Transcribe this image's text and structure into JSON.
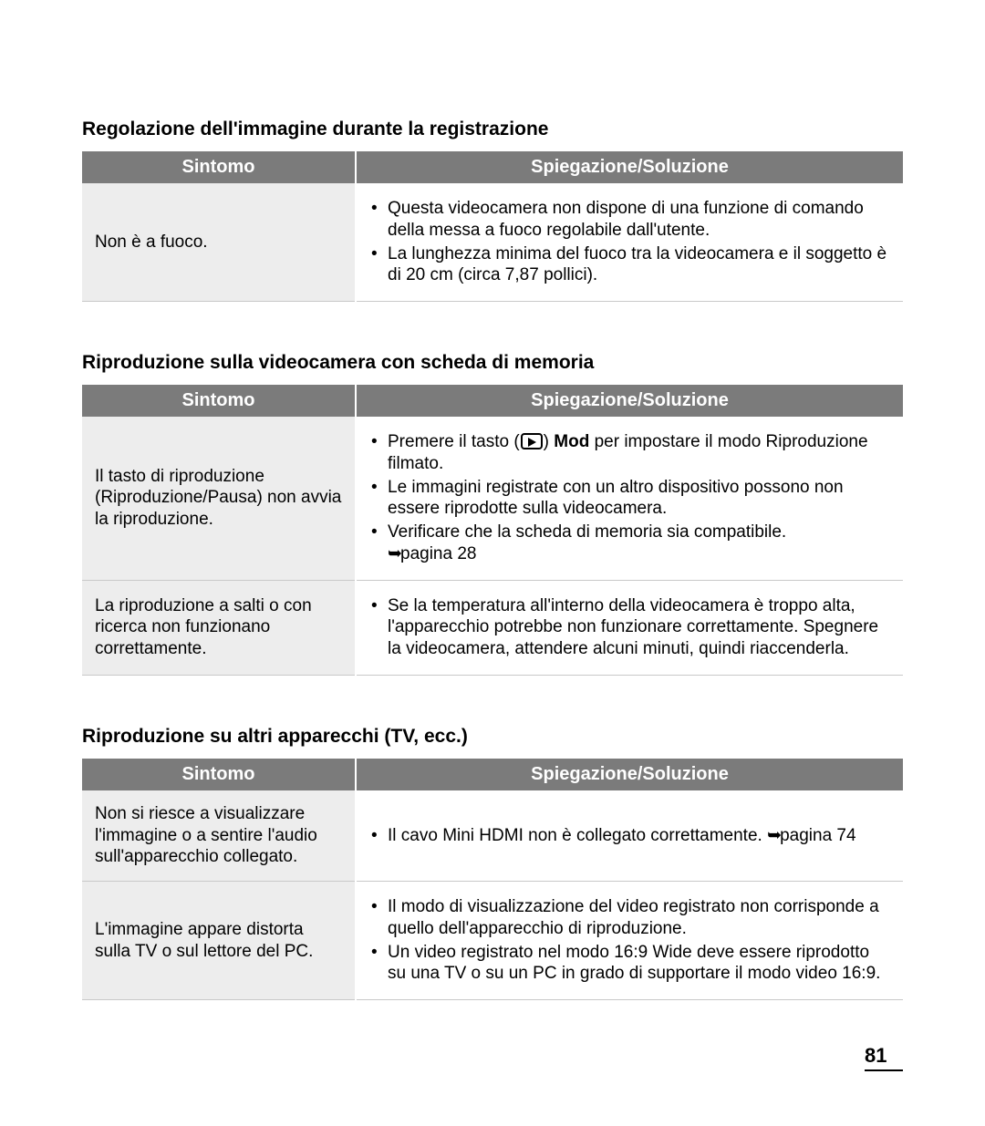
{
  "page_number": "81",
  "arrow_glyph": "➥",
  "headers": {
    "symptom": "Sintomo",
    "solution": "Spiegazione/Soluzione"
  },
  "sections": [
    {
      "title": "Regolazione dell'immagine durante la registrazione",
      "rows": [
        {
          "symptom": "Non è a fuoco.",
          "solutions": [
            {
              "text": "Questa videocamera non dispone di una funzione di comando della messa a fuoco regolabile dall'utente."
            },
            {
              "text": "La lunghezza minima del fuoco tra la videocamera e il soggetto è di 20 cm (circa 7,87 pollici)."
            }
          ]
        }
      ]
    },
    {
      "title": "Riproduzione sulla videocamera con scheda di memoria",
      "rows": [
        {
          "symptom": "Il tasto di riproduzione (Riproduzione/Pausa) non avvia la riproduzione.",
          "solutions": [
            {
              "pre": "Premere il tasto (",
              "icon": true,
              "mid": ") ",
              "bold": "Mod",
              "post": " per impostare il modo Riproduzione filmato."
            },
            {
              "text": "Le immagini registrate con un altro dispositivo possono non essere riprodotte sulla videocamera."
            },
            {
              "text": "Verificare che la scheda di memoria sia compatibile.",
              "page_ref": "pagina 28"
            }
          ]
        },
        {
          "symptom": "La riproduzione a salti o con ricerca non funzionano correttamente.",
          "solutions": [
            {
              "text": "Se la temperatura all'interno della videocamera è troppo alta, l'apparecchio potrebbe non funzionare correttamente. Spegnere la videocamera, attendere alcuni minuti, quindi riaccenderla."
            }
          ]
        }
      ]
    },
    {
      "title": "Riproduzione su altri apparecchi (TV, ecc.)",
      "rows": [
        {
          "symptom": "Non si riesce a visualizzare l'immagine o a sentire l'audio sull'apparecchio collegato.",
          "solutions": [
            {
              "text": "Il cavo Mini HDMI non è collegato correttamente. ",
              "inline_ref": "pagina 74"
            }
          ]
        },
        {
          "symptom": "L'immagine appare distorta sulla TV o sul lettore del PC.",
          "solutions": [
            {
              "text": "Il modo di visualizzazione del video registrato non corrisponde a quello dell'apparecchio di riproduzione."
            },
            {
              "text": "Un video registrato nel modo 16:9 Wide deve essere riprodotto su una TV o su un PC in grado di supportare il modo video 16:9."
            }
          ]
        }
      ]
    }
  ]
}
